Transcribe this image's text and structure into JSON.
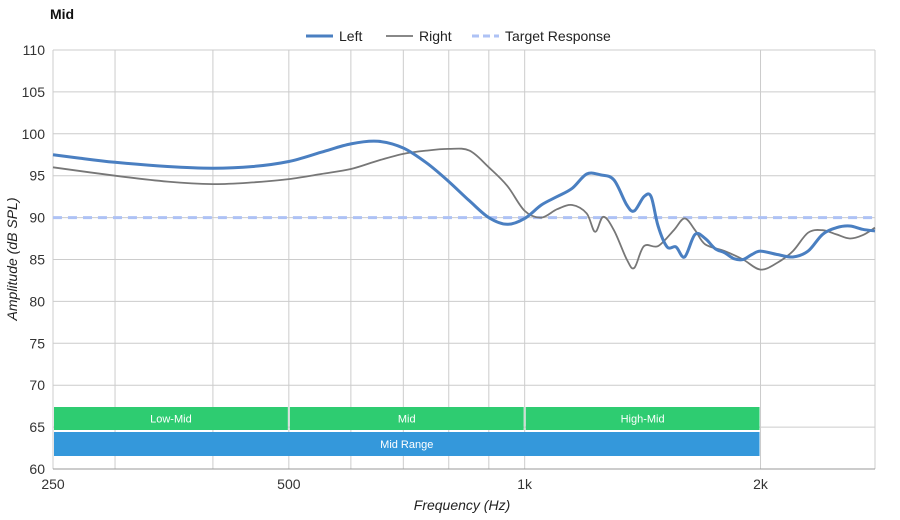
{
  "chart_data": {
    "type": "line",
    "title": "Mid",
    "xlabel": "Frequency (Hz)",
    "ylabel": "Amplitude (dB SPL)",
    "x_scale": "log",
    "xlim": [
      250,
      2800
    ],
    "ylim": [
      60,
      110
    ],
    "y_ticks": [
      60,
      65,
      70,
      75,
      80,
      85,
      90,
      95,
      100,
      105,
      110
    ],
    "x_ticks": [
      {
        "value": 250,
        "label": "250"
      },
      {
        "value": 500,
        "label": "500"
      },
      {
        "value": 1000,
        "label": "1k"
      },
      {
        "value": 2000,
        "label": "2k"
      }
    ],
    "x_minor_gridlines": [
      300,
      400,
      600,
      700,
      800,
      900
    ],
    "grid": true,
    "legend": {
      "position": "top-center"
    },
    "series": [
      {
        "name": "Left",
        "color": "#4a7fc1",
        "style": "solid-thick",
        "points": [
          [
            250,
            97.5
          ],
          [
            270,
            97.1
          ],
          [
            300,
            96.6
          ],
          [
            350,
            96.1
          ],
          [
            400,
            95.9
          ],
          [
            450,
            96.1
          ],
          [
            500,
            96.7
          ],
          [
            550,
            97.8
          ],
          [
            600,
            98.8
          ],
          [
            650,
            99.1
          ],
          [
            700,
            98.3
          ],
          [
            750,
            96.5
          ],
          [
            800,
            94.3
          ],
          [
            850,
            92.0
          ],
          [
            900,
            90.0
          ],
          [
            950,
            89.2
          ],
          [
            1000,
            89.9
          ],
          [
            1050,
            91.5
          ],
          [
            1100,
            92.5
          ],
          [
            1150,
            93.5
          ],
          [
            1200,
            95.2
          ],
          [
            1250,
            95.1
          ],
          [
            1300,
            94.5
          ],
          [
            1350,
            91.5
          ],
          [
            1380,
            90.8
          ],
          [
            1420,
            92.5
          ],
          [
            1450,
            92.5
          ],
          [
            1480,
            89.0
          ],
          [
            1520,
            86.5
          ],
          [
            1560,
            86.5
          ],
          [
            1600,
            85.3
          ],
          [
            1650,
            88.0
          ],
          [
            1700,
            87.5
          ],
          [
            1750,
            86.3
          ],
          [
            1800,
            85.8
          ],
          [
            1850,
            85.1
          ],
          [
            1900,
            85.0
          ],
          [
            1950,
            85.6
          ],
          [
            2000,
            86.0
          ],
          [
            2100,
            85.6
          ],
          [
            2200,
            85.3
          ],
          [
            2300,
            86.0
          ],
          [
            2400,
            88.0
          ],
          [
            2500,
            88.8
          ],
          [
            2600,
            89.0
          ],
          [
            2700,
            88.6
          ],
          [
            2800,
            88.4
          ]
        ]
      },
      {
        "name": "Right",
        "color": "#777777",
        "style": "solid-thin",
        "points": [
          [
            250,
            96.0
          ],
          [
            300,
            95.0
          ],
          [
            350,
            94.3
          ],
          [
            400,
            94.0
          ],
          [
            450,
            94.2
          ],
          [
            500,
            94.6
          ],
          [
            550,
            95.2
          ],
          [
            600,
            95.8
          ],
          [
            650,
            96.8
          ],
          [
            700,
            97.6
          ],
          [
            750,
            98.0
          ],
          [
            800,
            98.2
          ],
          [
            850,
            98.0
          ],
          [
            900,
            96.0
          ],
          [
            950,
            93.8
          ],
          [
            1000,
            90.8
          ],
          [
            1050,
            90.0
          ],
          [
            1100,
            91.0
          ],
          [
            1150,
            91.5
          ],
          [
            1200,
            90.5
          ],
          [
            1230,
            88.3
          ],
          [
            1260,
            90.1
          ],
          [
            1300,
            88.5
          ],
          [
            1350,
            85.0
          ],
          [
            1380,
            84.0
          ],
          [
            1420,
            86.6
          ],
          [
            1480,
            86.6
          ],
          [
            1550,
            88.5
          ],
          [
            1600,
            89.9
          ],
          [
            1650,
            88.5
          ],
          [
            1700,
            86.8
          ],
          [
            1800,
            86.0
          ],
          [
            1900,
            85.0
          ],
          [
            2000,
            83.8
          ],
          [
            2100,
            84.6
          ],
          [
            2200,
            86.0
          ],
          [
            2300,
            88.2
          ],
          [
            2400,
            88.5
          ],
          [
            2500,
            88.0
          ],
          [
            2600,
            87.5
          ],
          [
            2700,
            87.9
          ],
          [
            2800,
            88.8
          ]
        ]
      },
      {
        "name": "Target Response",
        "color": "#aec2f5",
        "style": "dashed",
        "points": [
          [
            250,
            90.0
          ],
          [
            2800,
            90.0
          ]
        ]
      }
    ],
    "bands": [
      {
        "label": "Low-Mid",
        "from": 250,
        "to": 500,
        "row": 1,
        "color": "#2ecc71"
      },
      {
        "label": "Mid",
        "from": 500,
        "to": 1000,
        "row": 1,
        "color": "#2ecc71"
      },
      {
        "label": "High-Mid",
        "from": 1000,
        "to": 2000,
        "row": 1,
        "color": "#2ecc71"
      },
      {
        "label": "Mid Range",
        "from": 250,
        "to": 2000,
        "row": 2,
        "color": "#3498db"
      }
    ]
  }
}
